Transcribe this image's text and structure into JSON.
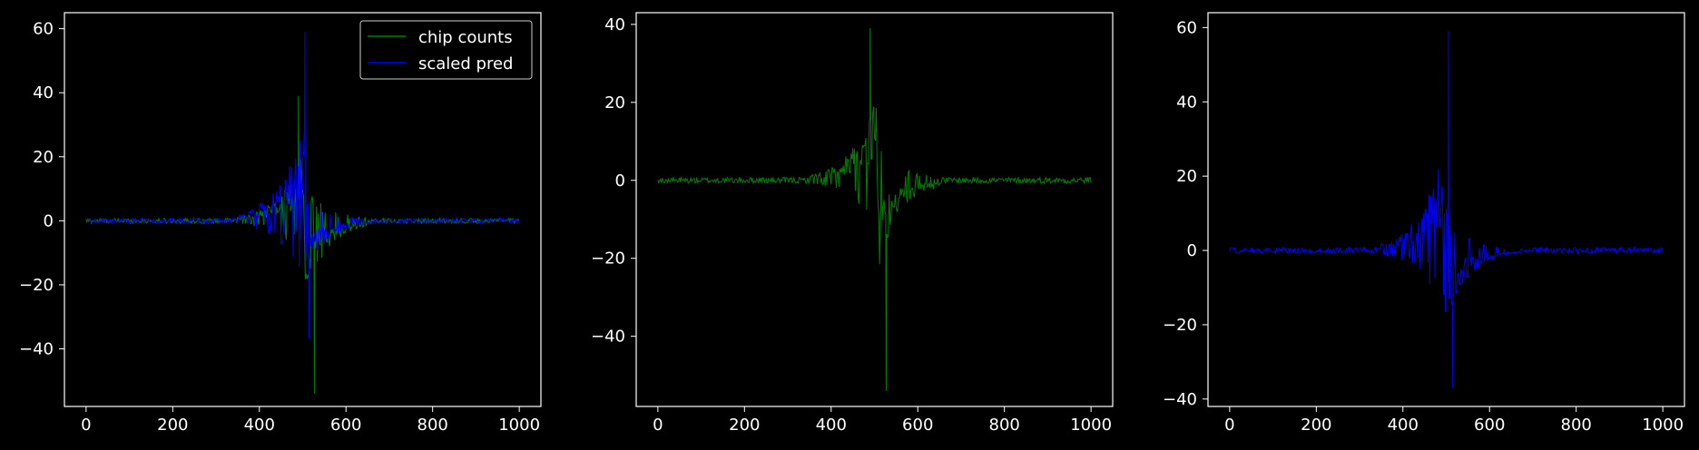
{
  "colors": {
    "background": "#000000",
    "axes": "#ffffff",
    "green": "#008000",
    "blue": "#0000ff"
  },
  "chart_data": [
    {
      "type": "line",
      "title": "",
      "xlabel": "",
      "ylabel": "",
      "xlim": [
        -50,
        1050
      ],
      "ylim": [
        -58,
        65
      ],
      "x_ticks": [
        0,
        200,
        400,
        600,
        800,
        1000
      ],
      "y_ticks": [
        -40,
        -20,
        0,
        20,
        40,
        60
      ],
      "grid": false,
      "legend": "upper right",
      "series": [
        {
          "name": "chip counts",
          "color": "#008000",
          "x_range": [
            0,
            1000
          ],
          "peak": 39,
          "trough": -54,
          "x_peak": 490,
          "x_trough": 527,
          "active_range": [
            350,
            650
          ]
        },
        {
          "name": "scaled pred",
          "color": "#0000ff",
          "x_range": [
            0,
            1000
          ],
          "peak": 59,
          "trough": -37,
          "x_peak": 505,
          "x_trough": 515,
          "active_range": [
            350,
            700
          ]
        }
      ]
    },
    {
      "type": "line",
      "title": "",
      "xlabel": "",
      "ylabel": "",
      "xlim": [
        -50,
        1050
      ],
      "ylim": [
        -58,
        43
      ],
      "x_ticks": [
        0,
        200,
        400,
        600,
        800,
        1000
      ],
      "y_ticks": [
        -40,
        -20,
        0,
        20,
        40
      ],
      "grid": false,
      "series": [
        {
          "color": "#008000",
          "x_range": [
            0,
            1000
          ],
          "peak": 39,
          "trough": -54,
          "x_peak": 490,
          "x_trough": 527,
          "active_range": [
            350,
            650
          ]
        }
      ]
    },
    {
      "type": "line",
      "title": "",
      "xlabel": "",
      "ylabel": "",
      "xlim": [
        -50,
        1050
      ],
      "ylim": [
        -42,
        64
      ],
      "x_ticks": [
        0,
        200,
        400,
        600,
        800,
        1000
      ],
      "y_ticks": [
        -40,
        -20,
        0,
        20,
        40,
        60
      ],
      "grid": false,
      "series": [
        {
          "color": "#0000ff",
          "x_range": [
            0,
            1000
          ],
          "peak": 59,
          "trough": -37,
          "x_peak": 505,
          "x_trough": 515,
          "active_range": [
            350,
            700
          ]
        }
      ]
    }
  ]
}
